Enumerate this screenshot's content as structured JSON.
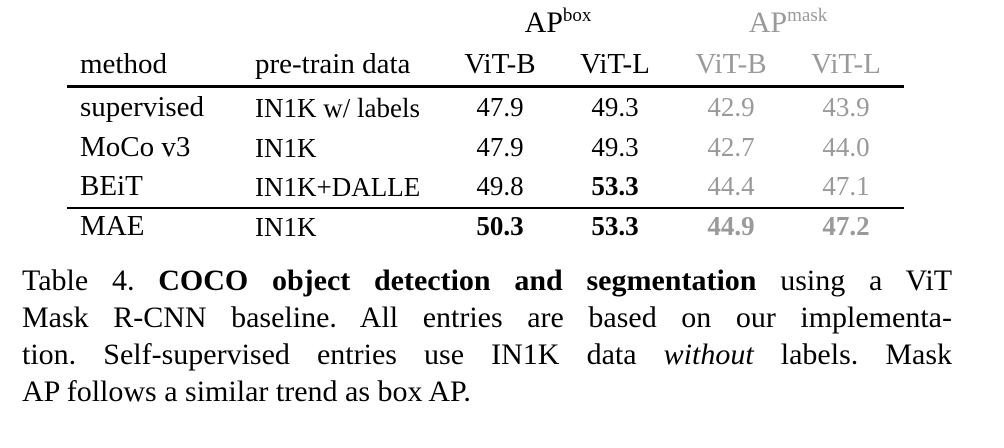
{
  "table": {
    "group_headers": {
      "box": {
        "base": "AP",
        "sup": "box"
      },
      "mask": {
        "base": "AP",
        "sup": "mask"
      }
    },
    "columns": [
      "method",
      "pre-train data",
      "ViT-B",
      "ViT-L",
      "ViT-B",
      "ViT-L"
    ],
    "rows": [
      {
        "method": "supervised",
        "data": "IN1K w/ labels",
        "box_b": "47.9",
        "box_l": "49.3",
        "mask_b": "42.9",
        "mask_l": "43.9"
      },
      {
        "method": "MoCo v3",
        "data": "IN1K",
        "box_b": "47.9",
        "box_l": "49.3",
        "mask_b": "42.7",
        "mask_l": "44.0"
      },
      {
        "method": "BEiT",
        "data": "IN1K+DALLE",
        "box_b": "49.8",
        "box_l": "53.3",
        "mask_b": "44.4",
        "mask_l": "47.1"
      },
      {
        "method": "MAE",
        "data": "IN1K",
        "box_b": "50.3",
        "box_l": "53.3",
        "mask_b": "44.9",
        "mask_l": "47.2"
      }
    ],
    "colors": {
      "text": "#000000",
      "mask_text": "#9a9a9a"
    }
  },
  "caption": {
    "label": "Table 4.",
    "title": "COCO object detection and segmentation",
    "line1_rest": "using a ViT",
    "line2": "Mask R-CNN baseline. All entries are based on our implementa-",
    "line3_pre": "tion. Self-supervised entries use IN1K data",
    "line3_em": "without",
    "line3_post": "labels. Mask",
    "line4": "AP follows a similar trend as box AP."
  }
}
